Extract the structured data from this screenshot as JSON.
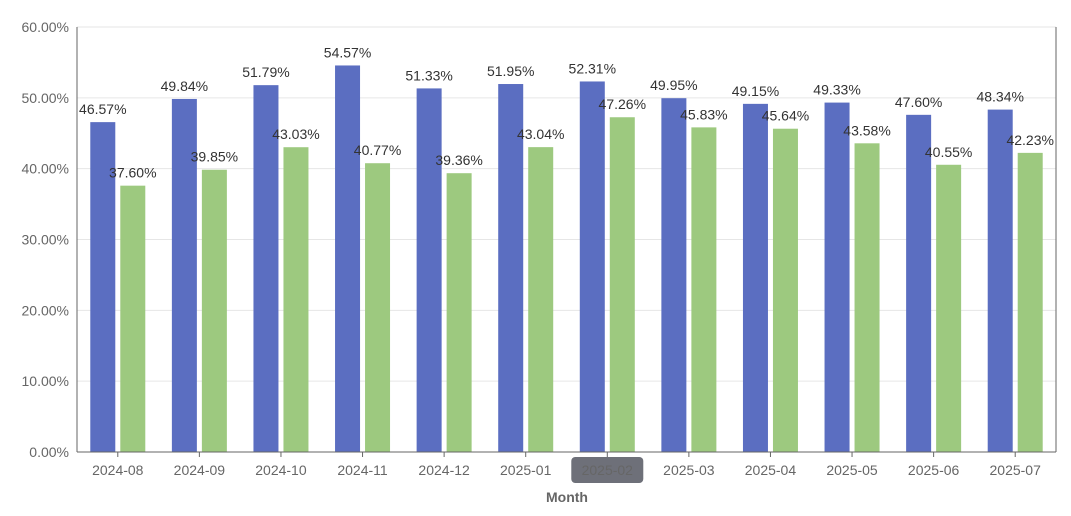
{
  "chart_data": {
    "type": "bar",
    "title": "",
    "xlabel": "Month",
    "ylabel": "",
    "ylim": [
      0,
      60
    ],
    "y_ticks": [
      0,
      10,
      20,
      30,
      40,
      50,
      60
    ],
    "y_tick_labels": [
      "0.00%",
      "10.00%",
      "20.00%",
      "30.00%",
      "40.00%",
      "50.00%",
      "60.00%"
    ],
    "grid": true,
    "categories": [
      "2024-08",
      "2024-09",
      "2024-10",
      "2024-11",
      "2024-12",
      "2025-01",
      "2025-02",
      "2025-03",
      "2025-04",
      "2025-05",
      "2025-06",
      "2025-07"
    ],
    "highlighted_category": "2025-02",
    "series": [
      {
        "color": "#5b6ec1",
        "values": [
          46.57,
          49.84,
          51.79,
          54.57,
          51.33,
          51.95,
          52.31,
          49.95,
          49.15,
          49.33,
          47.6,
          48.34
        ],
        "labels": [
          "46.57%",
          "49.84%",
          "51.79%",
          "54.57%",
          "51.33%",
          "51.95%",
          "52.31%",
          "49.95%",
          "49.15%",
          "49.33%",
          "47.60%",
          "48.34%"
        ]
      },
      {
        "color": "#9dc97f",
        "values": [
          37.6,
          39.85,
          43.03,
          40.77,
          39.36,
          43.04,
          47.26,
          45.83,
          45.64,
          43.58,
          40.55,
          42.23
        ],
        "labels": [
          "37.60%",
          "39.85%",
          "43.03%",
          "40.77%",
          "39.36%",
          "43.04%",
          "47.26%",
          "45.83%",
          "45.64%",
          "43.58%",
          "40.55%",
          "42.23%"
        ]
      }
    ]
  }
}
